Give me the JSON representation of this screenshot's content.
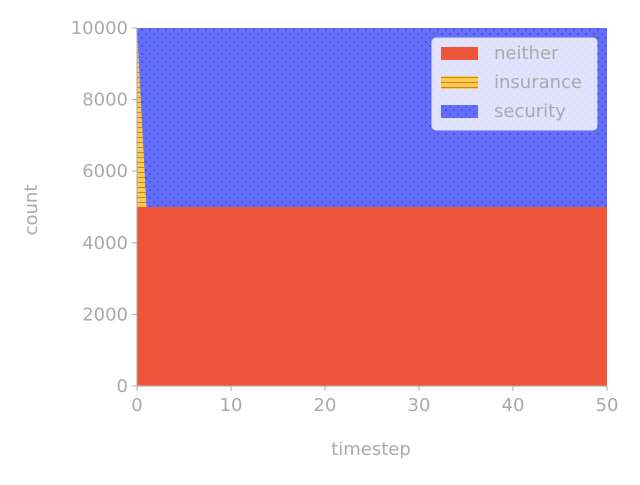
{
  "chart_data": {
    "type": "area",
    "stacked": true,
    "xlabel": "timestep",
    "ylabel": "count",
    "xlim": [
      0,
      50
    ],
    "ylim": [
      0,
      10000
    ],
    "x_ticks": [
      0,
      10,
      20,
      30,
      40,
      50
    ],
    "y_ticks": [
      0,
      2000,
      4000,
      6000,
      8000,
      10000
    ],
    "grid": false,
    "legend_position": "top-right",
    "x": [
      0,
      1,
      2,
      50
    ],
    "series": [
      {
        "name": "neither",
        "color": "#ef553b",
        "pattern": "none",
        "values": [
          5000,
          5000,
          5000,
          5000
        ]
      },
      {
        "name": "insurance",
        "color": "#fecb52",
        "pattern": "stripes",
        "values": [
          5000,
          0,
          0,
          0
        ]
      },
      {
        "name": "security",
        "color": "#636efa",
        "pattern": "dots",
        "values": [
          0,
          5000,
          5000,
          5000
        ]
      }
    ]
  }
}
